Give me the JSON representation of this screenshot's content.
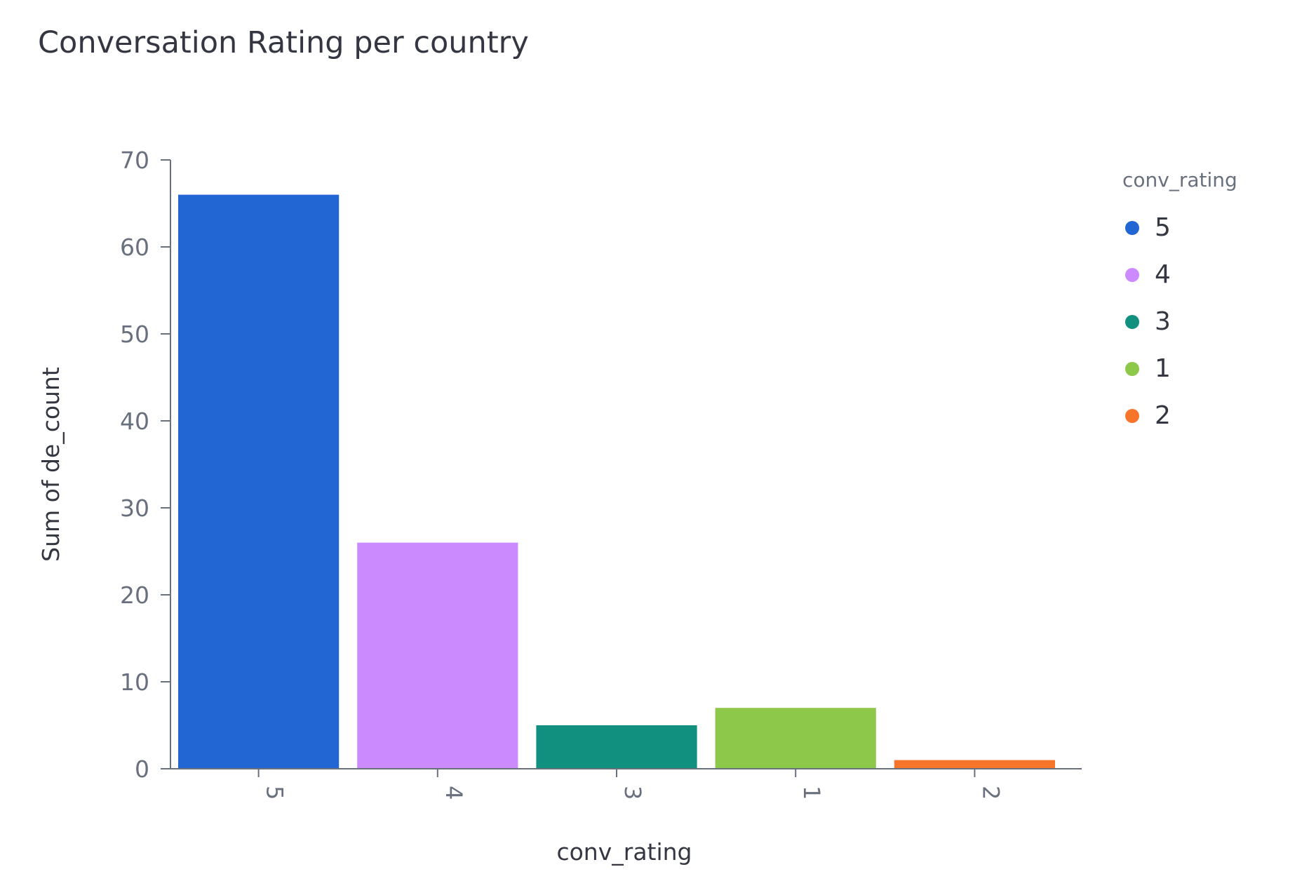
{
  "chart_data": {
    "type": "bar",
    "title": "Conversation Rating per country",
    "xlabel": "conv_rating",
    "ylabel": "Sum of de_count",
    "categories": [
      "5",
      "4",
      "3",
      "1",
      "2"
    ],
    "values": [
      66,
      26,
      5,
      7,
      1
    ],
    "colors": [
      "#2166d3",
      "#cc8aff",
      "#11907f",
      "#8dc84a",
      "#f7742b"
    ],
    "ylim": [
      0,
      70
    ],
    "yticks": [
      "0",
      "10",
      "20",
      "30",
      "40",
      "50",
      "60",
      "70"
    ],
    "grid": false,
    "legend": {
      "title": "conv_rating",
      "placement": "right",
      "entries": [
        "5",
        "4",
        "3",
        "1",
        "2"
      ]
    }
  }
}
